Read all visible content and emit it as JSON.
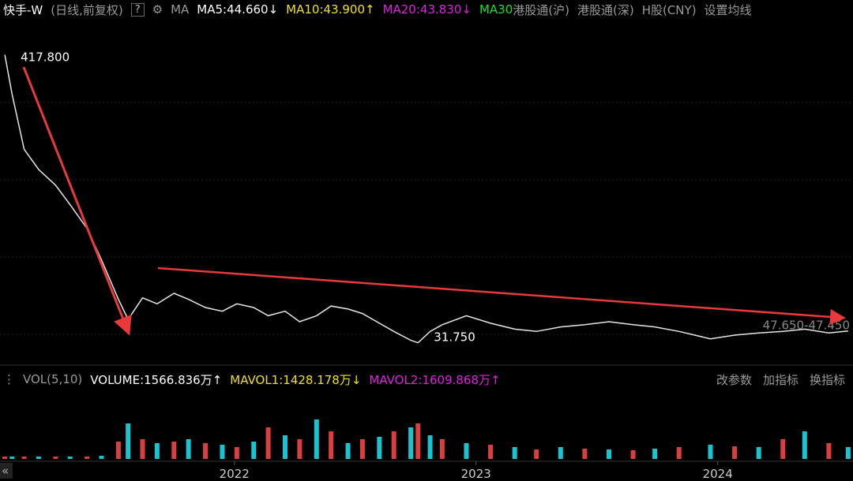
{
  "header": {
    "title": "快手-W",
    "period": "(日线,前复权)",
    "help": "?",
    "ma_label": "MA",
    "ma5": "MA5:44.660↓",
    "ma10": "MA10:43.900↑",
    "ma20": "MA20:43.830↓",
    "ma30": "MA30",
    "links": [
      "港股通(沪)",
      "港股通(深)",
      "H股(CNY)",
      "设置均线"
    ]
  },
  "volume_header": {
    "label": "VOL(5,10)",
    "volume": "VOLUME:1566.836万↑",
    "mavol1": "MAVOL1:1428.178万↓",
    "mavol2": "MAVOL2:1609.868万↑",
    "buttons": [
      "改参数",
      "加指标",
      "换指标"
    ]
  },
  "chart_data": [
    {
      "type": "line",
      "color": "#e6e6e6",
      "x": [
        2021.05,
        2021.08,
        2021.13,
        2021.19,
        2021.26,
        2021.32,
        2021.39,
        2021.45,
        2021.52,
        2021.56,
        2021.62,
        2021.68,
        2021.75,
        2021.81,
        2021.88,
        2021.95,
        2022.01,
        2022.08,
        2022.14,
        2022.21,
        2022.27,
        2022.34,
        2022.4,
        2022.47,
        2022.53,
        2022.6,
        2022.66,
        2022.73,
        2022.76,
        2022.81,
        2022.86,
        2022.96,
        2023.06,
        2023.16,
        2023.25,
        2023.35,
        2023.45,
        2023.55,
        2023.65,
        2023.74,
        2023.84,
        2023.97,
        2024.07,
        2024.17,
        2024.27,
        2024.36,
        2024.46,
        2024.54
      ],
      "values": [
        417.8,
        365,
        291,
        264,
        243,
        217,
        185,
        143,
        90,
        63,
        92,
        84,
        98,
        90,
        79,
        74,
        84,
        79,
        68,
        74,
        60,
        68,
        81,
        77,
        71,
        58,
        47,
        35,
        31.75,
        47,
        56,
        68,
        58,
        50,
        47,
        53,
        56,
        60,
        56,
        53,
        47,
        37,
        42,
        45,
        47,
        50,
        45,
        47.45
      ],
      "xlim": [
        2021.03,
        2024.56
      ],
      "ylim": [
        5,
        430
      ],
      "annotations": [
        {
          "label": "417.800",
          "x": 2021.05,
          "value": 417.8
        },
        {
          "label": "31.750",
          "x": 2022.76,
          "value": 31.75
        },
        {
          "label": "47.650-47.450",
          "x": 2024.54,
          "values": [
            47.65,
            47.45
          ]
        }
      ]
    },
    {
      "type": "bar",
      "color": "#d84040",
      "x": [
        2021.05,
        2021.08,
        2021.13,
        2021.19,
        2021.26,
        2021.32,
        2021.39,
        2021.45,
        2021.52,
        2021.56,
        2021.62,
        2021.68,
        2021.75,
        2021.81,
        2021.88,
        2021.95,
        2022.01,
        2022.08,
        2022.14,
        2022.21,
        2022.27,
        2022.34,
        2022.4,
        2022.47,
        2022.53,
        2022.6,
        2022.66,
        2022.73,
        2022.76,
        2022.81,
        2022.86,
        2022.96,
        2023.06,
        2023.16,
        2023.25,
        2023.35,
        2023.45,
        2023.55,
        2023.65,
        2023.74,
        2023.84,
        2023.97,
        2024.07,
        2024.17,
        2024.27,
        2024.36,
        2024.46,
        2024.54
      ],
      "values": [
        300,
        300,
        300,
        300,
        300,
        300,
        300,
        400,
        2200,
        4500,
        2500,
        2000,
        2200,
        2500,
        2000,
        1800,
        1500,
        2200,
        4000,
        3000,
        2500,
        5000,
        3500,
        2000,
        2500,
        2800,
        3500,
        4000,
        4500,
        3000,
        2500,
        2000,
        1800,
        1500,
        1200,
        1500,
        1300,
        1200,
        1100,
        1300,
        1500,
        1800,
        1600,
        1500,
        2500,
        3500,
        2000,
        1500
      ],
      "xlim": [
        2021.03,
        2024.56
      ],
      "ylim": [
        0,
        8700
      ],
      "xticks": [
        2022,
        2023,
        2024
      ]
    }
  ]
}
